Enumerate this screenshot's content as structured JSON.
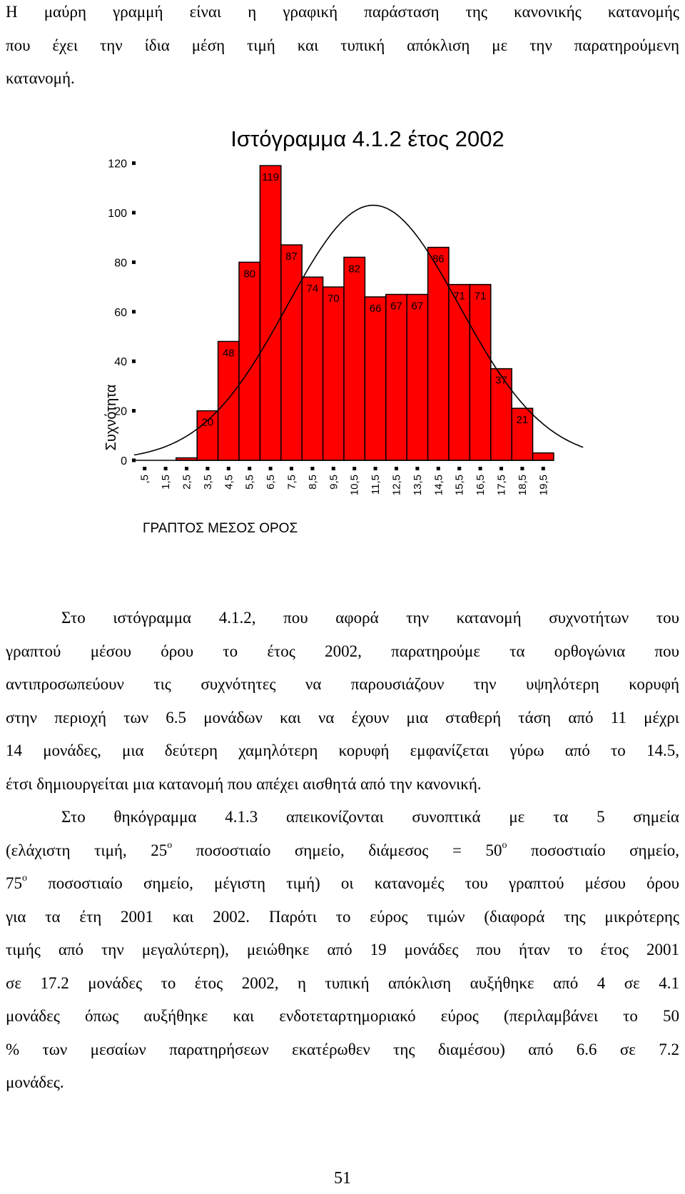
{
  "intro_lines": [
    "Η μαύρη γραμμή είναι η γραφική παράσταση της κανονικής κατανομής",
    "που έχει την ίδια μέση τιμή και τυπική απόκλιση με την παρατηρούμενη",
    "κατανομή."
  ],
  "chart_data": {
    "type": "bar",
    "title": "Ιστόγραμμα 4.1.2 έτος 2002",
    "xlabel": "ΓΡΑΠΤΟΣ ΜΕΣΟΣ ΟΡΟΣ",
    "ylabel": "Συχνότητα",
    "ylim": [
      0,
      120
    ],
    "y_ticks": [
      "0",
      "20",
      "40",
      "60",
      "80",
      "100",
      "120"
    ],
    "categories": [
      ",5",
      "1,5",
      "2,5",
      "3,5",
      "4,5",
      "5,5",
      "6,5",
      "7,5",
      "8,5",
      "9,5",
      "10,5",
      "11,5",
      "12,5",
      "13,5",
      "14,5",
      "15,5",
      "16,5",
      "17,5",
      "18,5",
      "19,5"
    ],
    "values": [
      0,
      0,
      1,
      20,
      48,
      80,
      119,
      87,
      74,
      70,
      82,
      66,
      67,
      67,
      86,
      71,
      71,
      37,
      21,
      3
    ],
    "data_labels": [
      "",
      "",
      "",
      "20",
      "48",
      "80",
      "119",
      "87",
      "74",
      "70",
      "82",
      "66",
      "67",
      "67",
      "86",
      "71",
      "71",
      "37",
      "21",
      ""
    ],
    "bar_color": "#ff0000",
    "curve_color": "#000000",
    "overlay": {
      "type": "normal_curve",
      "mean": 10.9,
      "sd": 4.1,
      "peak": 103
    }
  },
  "para1_lines": [
    "Στο ιστόγραμμα 4.1.2, που αφορά την κατανομή συχνοτήτων του",
    "γραπτού μέσου όρου το έτος 2002, παρατηρούμε τα ορθογώνια που",
    "αντιπροσωπεύουν τις συχνότητες να παρουσιάζουν την υψηλότερη κορυφή",
    "στην περιοχή των 6.5 μονάδων και να έχουν μια σταθερή τάση από 11 μέχρι",
    "14 μονάδες, μια δεύτερη χαμηλότερη κορυφή εμφανίζεται γύρω από το 14.5,",
    "έτσι δημιουργείται μια κατανομή που απέχει αισθητά από την κανονική."
  ],
  "para2": {
    "l1": "Στο θηκόγραμμα 4.1.3 απεικονίζονται συνοπτικά με τα 5 σημεία",
    "l2a": "(ελάχιστη τιμή, 25",
    "sup": "ο",
    "l2b": " ποσοστιαίο σημείο, διάμεσος = 50",
    "l2c": " ποσοστιαίο σημείο,",
    "l3a": "75",
    "l3b": " ποσοστιαίο σημείο, μέγιστη τιμή) οι κατανομές του γραπτού μέσου όρου",
    "l4": "για τα έτη 2001 και 2002. Παρότι το εύρος τιμών (διαφορά της μικρότερης",
    "l5": "τιμής από την μεγαλύτερη), μειώθηκε από 19 μονάδες που ήταν το έτος 2001",
    "l6": "σε 17.2 μονάδες το έτος 2002, η τυπική απόκλιση αυξήθηκε από 4 σε 4.1",
    "l7": "μονάδες όπως αυξήθηκε και ενδοτεταρτημοριακό εύρος (περιλαμβάνει το 50",
    "l8": "% των μεσαίων παρατηρήσεων εκατέρωθεν της διαμέσου) από 6.6 σε 7.2",
    "l9": "μονάδες."
  },
  "page_number": "51"
}
